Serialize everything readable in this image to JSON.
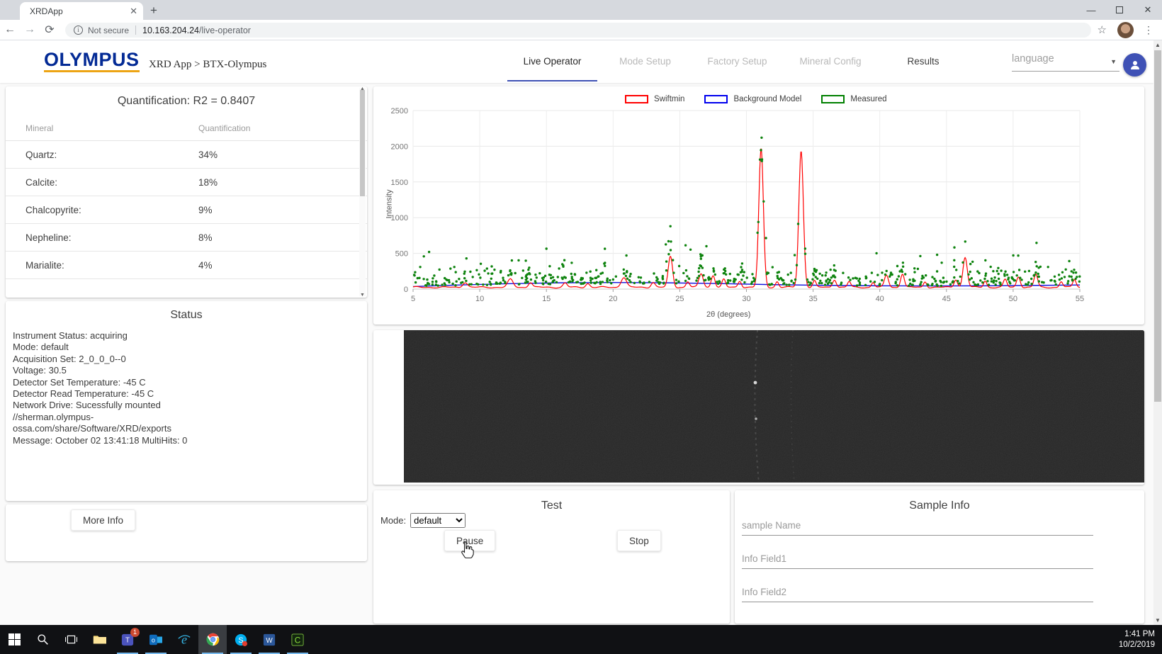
{
  "browser": {
    "tab_title": "XRDApp",
    "security_label": "Not secure",
    "url_host": "10.163.204.24",
    "url_path": "/live-operator"
  },
  "header": {
    "logo": "OLYMPUS",
    "breadcrumb": "XRD App > BTX-Olympus",
    "nav": [
      {
        "label": "Live Operator",
        "state": "active"
      },
      {
        "label": "Mode Setup",
        "state": "disabled"
      },
      {
        "label": "Factory Setup",
        "state": "disabled"
      },
      {
        "label": "Mineral Config",
        "state": "disabled"
      },
      {
        "label": "Results",
        "state": "enabled"
      }
    ],
    "language_placeholder": "language",
    "accent_color": "#3f51b5",
    "logo_color": "#032a95",
    "logo_underline_color": "#eda414"
  },
  "quantification": {
    "title": "Quantification: R2 = 0.8407",
    "columns": [
      "Mineral",
      "Quantification"
    ],
    "rows": [
      {
        "mineral": "Quartz:",
        "value": "34%"
      },
      {
        "mineral": "Calcite:",
        "value": "18%"
      },
      {
        "mineral": "Chalcopyrite:",
        "value": "9%"
      },
      {
        "mineral": "Nepheline:",
        "value": "8%"
      },
      {
        "mineral": "Marialite:",
        "value": "4%"
      }
    ]
  },
  "status": {
    "title": "Status",
    "lines": [
      "Instrument Status: acquiring",
      "Mode: default",
      "Acquisition Set: 2_0_0_0--0",
      "Voltage: 30.5",
      "Detector Set Temperature: -45 C",
      "Detector Read Temperature: -45 C",
      "Network Drive: Sucessfully mounted //sherman.olympus-ossa.com/share/Software/XRD/exports",
      "Message: October 02 13:41:18 MultiHits: 0"
    ]
  },
  "more_info": {
    "label": "More Info"
  },
  "chart_data": {
    "type": "scatter",
    "title": "",
    "xlabel": "2θ (degrees)",
    "ylabel": "Intensity",
    "xlim": [
      5,
      55
    ],
    "ylim": [
      0,
      2500
    ],
    "x_ticks": [
      5,
      10,
      15,
      20,
      25,
      30,
      35,
      40,
      45,
      50,
      55
    ],
    "y_ticks": [
      0,
      500,
      1000,
      1500,
      2000,
      2500
    ],
    "grid": true,
    "legend_position": "top",
    "series": [
      {
        "name": "Swiftmin",
        "type": "line",
        "color": "#ff0000",
        "baseline": 25,
        "peaks": [
          [
            8.9,
            70,
            0.18
          ],
          [
            12.3,
            110,
            0.2
          ],
          [
            13.8,
            70,
            0.15
          ],
          [
            16.4,
            60,
            0.15
          ],
          [
            18.1,
            55,
            0.15
          ],
          [
            20.8,
            140,
            0.2
          ],
          [
            23.0,
            70,
            0.15
          ],
          [
            24.3,
            430,
            0.16
          ],
          [
            25.6,
            80,
            0.13
          ],
          [
            26.6,
            190,
            0.16
          ],
          [
            27.5,
            170,
            0.14
          ],
          [
            28.3,
            110,
            0.13
          ],
          [
            29.5,
            90,
            0.13
          ],
          [
            31.1,
            1940,
            0.17
          ],
          [
            32.3,
            80,
            0.12
          ],
          [
            34.1,
            1910,
            0.17
          ],
          [
            35.1,
            90,
            0.12
          ],
          [
            36.6,
            110,
            0.14
          ],
          [
            37.7,
            80,
            0.12
          ],
          [
            39.5,
            70,
            0.12
          ],
          [
            40.5,
            170,
            0.15
          ],
          [
            41.7,
            190,
            0.14
          ],
          [
            43.4,
            80,
            0.12
          ],
          [
            45.7,
            110,
            0.13
          ],
          [
            46.4,
            420,
            0.16
          ],
          [
            47.9,
            90,
            0.12
          ],
          [
            49.4,
            110,
            0.13
          ],
          [
            50.4,
            150,
            0.14
          ],
          [
            51.7,
            180,
            0.14
          ],
          [
            53.6,
            80,
            0.12
          ],
          [
            54.6,
            110,
            0.13
          ]
        ]
      },
      {
        "name": "Background Model",
        "type": "line",
        "color": "#1414e0",
        "points": [
          [
            5,
            35
          ],
          [
            8,
            55
          ],
          [
            12,
            75
          ],
          [
            16,
            88
          ],
          [
            20,
            92
          ],
          [
            24,
            88
          ],
          [
            28,
            78
          ],
          [
            32,
            62
          ],
          [
            36,
            52
          ],
          [
            40,
            46
          ],
          [
            44,
            44
          ],
          [
            48,
            46
          ],
          [
            52,
            52
          ],
          [
            55,
            58
          ]
        ]
      },
      {
        "name": "Measured",
        "type": "scatter",
        "color": "#0e830e",
        "point_count": 590,
        "noise_scale": 88,
        "y_cap": 2120,
        "outliers": [
          [
            6.2,
            520
          ],
          [
            9.0,
            430
          ],
          [
            15.0,
            565
          ],
          [
            21.0,
            470
          ],
          [
            24.3,
            880
          ],
          [
            27.0,
            600
          ],
          [
            44.3,
            480
          ]
        ]
      }
    ]
  },
  "test_panel": {
    "title": "Test",
    "mode_label": "Mode:",
    "mode_value": "default",
    "pause_label": "Pause",
    "stop_label": "Stop"
  },
  "sample_info": {
    "title": "Sample Info",
    "fields": [
      {
        "placeholder": "sample Name",
        "value": ""
      },
      {
        "placeholder": "Info Field1",
        "value": ""
      },
      {
        "placeholder": "Info Field2",
        "value": ""
      }
    ]
  },
  "taskbar": {
    "time": "1:41 PM",
    "date": "10/2/2019",
    "running_indicator_color": "#76b9ed",
    "icons": [
      {
        "name": "start",
        "running": false
      },
      {
        "name": "search",
        "running": false
      },
      {
        "name": "task-view",
        "running": false
      },
      {
        "name": "file-explorer",
        "running": false
      },
      {
        "name": "teams",
        "running": true,
        "badge": "1"
      },
      {
        "name": "outlook",
        "running": true
      },
      {
        "name": "internet-explorer",
        "running": false
      },
      {
        "name": "chrome",
        "running": true,
        "active": true
      },
      {
        "name": "skype",
        "running": true,
        "badge": ""
      },
      {
        "name": "word",
        "running": true
      },
      {
        "name": "camtasia",
        "running": true
      }
    ]
  }
}
